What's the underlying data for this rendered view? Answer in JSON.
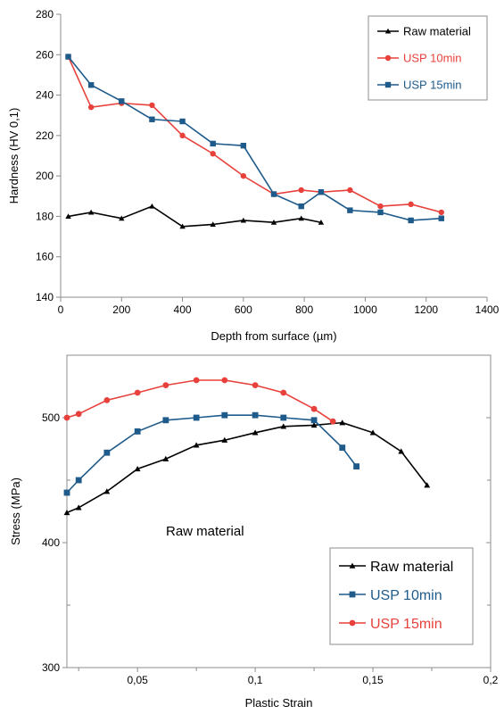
{
  "chart_data": [
    {
      "type": "line",
      "xlabel": "Depth from surface (µm)",
      "ylabel": "Hardness (HV 0,1)",
      "xlim": [
        0,
        1400
      ],
      "ylim": [
        140,
        280
      ],
      "x_ticks": [
        "0",
        "200",
        "400",
        "600",
        "800",
        "1000",
        "1200",
        "1400"
      ],
      "y_ticks": [
        "140",
        "160",
        "180",
        "200",
        "220",
        "240",
        "260",
        "280"
      ],
      "grid": false,
      "legend": "top-right",
      "series": [
        {
          "name": "Raw material",
          "color": "#000000",
          "marker": "triangle",
          "x": [
            25,
            100,
            200,
            300,
            400,
            500,
            600,
            700,
            790,
            855
          ],
          "y": [
            180,
            182,
            179,
            185,
            175,
            176,
            178,
            177,
            179,
            177
          ]
        },
        {
          "name": "USP 10min",
          "color": "#e8413c",
          "marker": "circle",
          "x": [
            25,
            100,
            200,
            300,
            400,
            500,
            600,
            700,
            790,
            855,
            950,
            1050,
            1150,
            1250
          ],
          "y": [
            259,
            234,
            236,
            235,
            220,
            211,
            200,
            191,
            193,
            192,
            193,
            185,
            186,
            182
          ]
        },
        {
          "name": "USP 15min",
          "color": "#1e5a8a",
          "marker": "square",
          "x": [
            25,
            100,
            200,
            300,
            400,
            500,
            600,
            700,
            790,
            855,
            950,
            1050,
            1150,
            1250
          ],
          "y": [
            259,
            245,
            237,
            228,
            227,
            216,
            215,
            191,
            185,
            192,
            183,
            182,
            178,
            179
          ]
        }
      ]
    },
    {
      "type": "line",
      "xlabel": "Plastic Strain",
      "ylabel": "Stress (MPa)",
      "xlim": [
        0.02,
        0.2
      ],
      "ylim": [
        300,
        550
      ],
      "x_ticks": [
        "0,05",
        "0,1",
        "0,15",
        "0,2"
      ],
      "y_ticks": [
        "300",
        "400",
        "500"
      ],
      "grid": false,
      "legend": "bottom-right",
      "annotation": "Raw material",
      "series": [
        {
          "name": "Raw material",
          "color": "#000000",
          "marker": "triangle",
          "x": [
            0.02,
            0.025,
            0.037,
            0.05,
            0.062,
            0.075,
            0.087,
            0.1,
            0.112,
            0.125,
            0.137,
            0.15,
            0.162,
            0.173
          ],
          "y": [
            424,
            428,
            441,
            459,
            467,
            478,
            482,
            488,
            493,
            494,
            496,
            488,
            473,
            446
          ]
        },
        {
          "name": "USP 10min",
          "color": "#1e5a8a",
          "marker": "square",
          "x": [
            0.02,
            0.025,
            0.037,
            0.05,
            0.062,
            0.075,
            0.087,
            0.1,
            0.112,
            0.125,
            0.137,
            0.143
          ],
          "y": [
            440,
            450,
            472,
            489,
            498,
            500,
            502,
            502,
            500,
            498,
            476,
            461
          ]
        },
        {
          "name": "USP 15min",
          "color": "#e8413c",
          "marker": "circle",
          "x": [
            0.02,
            0.025,
            0.037,
            0.05,
            0.062,
            0.075,
            0.087,
            0.1,
            0.112,
            0.125,
            0.133
          ],
          "y": [
            500,
            503,
            514,
            520,
            526,
            530,
            530,
            526,
            520,
            507,
            497
          ]
        }
      ]
    }
  ]
}
